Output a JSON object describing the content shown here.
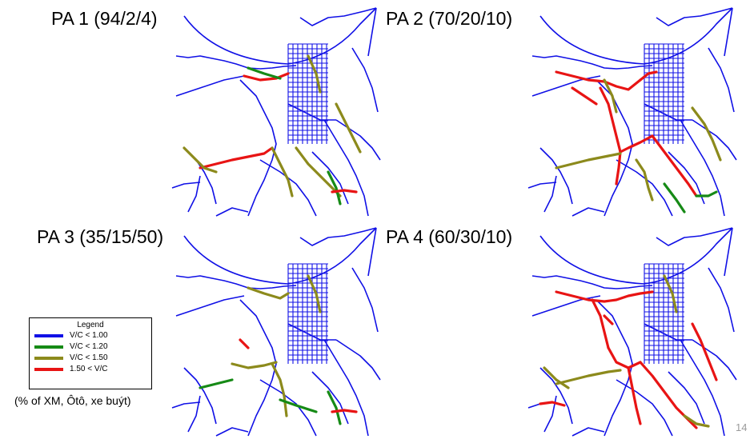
{
  "panels": [
    {
      "title": "PA 1 (94/2/4)",
      "scenario": 1
    },
    {
      "title": "PA 2 (70/20/10)",
      "scenario": 2
    },
    {
      "title": "PA 3 (35/15/50)",
      "scenario": 3
    },
    {
      "title": "PA 4 (60/30/10)",
      "scenario": 4
    }
  ],
  "legend": {
    "title": "Legend",
    "items": [
      {
        "label": "V/C < 1.00",
        "color": "#1010e6"
      },
      {
        "label": "V/C < 1.20",
        "color": "#168a16"
      },
      {
        "label": "V/C < 1.50",
        "color": "#8c8a1c"
      },
      {
        "label": "1.50 < V/C",
        "color": "#e81414"
      }
    ]
  },
  "footnote": "(% of XM, Ôtô, xe buýt)",
  "slide_number": "14"
}
